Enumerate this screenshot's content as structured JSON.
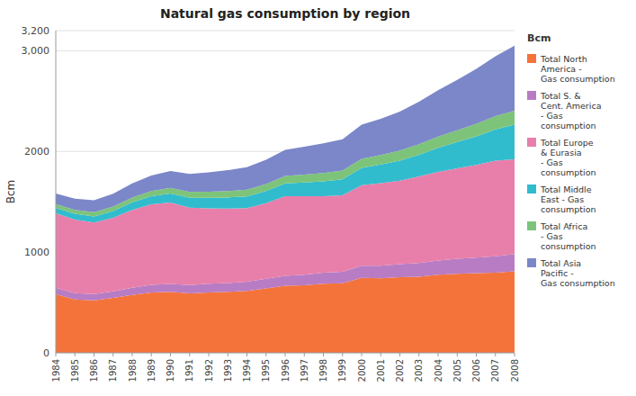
{
  "chart_data": {
    "type": "area",
    "stacked": true,
    "title": "Natural gas consumption by region",
    "ylabel": "Bcm",
    "legend_title": "Bcm",
    "legend": "right",
    "grid": true,
    "x": [
      1984,
      1985,
      1986,
      1987,
      1988,
      1989,
      1990,
      1991,
      1992,
      1993,
      1994,
      1995,
      1996,
      1997,
      1998,
      1999,
      2000,
      2001,
      2002,
      2003,
      2004,
      2005,
      2006,
      2007,
      2008
    ],
    "xlim": [
      1984,
      2008
    ],
    "xticks": [
      1984,
      1985,
      1986,
      1987,
      1988,
      1989,
      1990,
      1991,
      1992,
      1993,
      1994,
      1995,
      1996,
      1997,
      1998,
      1999,
      2000,
      2001,
      2002,
      2003,
      2004,
      2005,
      2006,
      2007,
      2008
    ],
    "ylim": [
      0,
      3200
    ],
    "yticks": [
      0,
      1000,
      2000,
      {
        "value": 3000,
        "label": "3,000"
      },
      {
        "value": 3200,
        "label": "3,200"
      }
    ],
    "series": [
      {
        "name": "Total North\nAmerica -\nGas consumption",
        "color": "#F4733B",
        "values": [
          580,
          530,
          520,
          545,
          575,
          600,
          605,
          590,
          600,
          605,
          615,
          640,
          665,
          670,
          685,
          690,
          745,
          740,
          750,
          755,
          775,
          785,
          790,
          795,
          810
        ]
      },
      {
        "name": "Total S. &\nCent. America\n- Gas\nconsumption",
        "color": "#B87CC4",
        "values": [
          65,
          62,
          63,
          66,
          70,
          74,
          78,
          82,
          85,
          88,
          92,
          95,
          100,
          105,
          110,
          115,
          120,
          125,
          130,
          136,
          142,
          148,
          155,
          163,
          172
        ]
      },
      {
        "name": "Total Europe\n& Eurasia\n- Gas\nconsumption",
        "color": "#E87FAA",
        "values": [
          740,
          730,
          710,
          730,
          775,
          800,
          810,
          770,
          750,
          740,
          730,
          750,
          790,
          780,
          760,
          760,
          800,
          820,
          830,
          860,
          880,
          900,
          920,
          950,
          940
        ]
      },
      {
        "name": "Total Middle\nEast - Gas\nconsumption",
        "color": "#31BCCE",
        "values": [
          55,
          58,
          62,
          67,
          75,
          82,
          90,
          98,
          104,
          110,
          116,
          122,
          128,
          136,
          148,
          158,
          172,
          185,
          198,
          215,
          238,
          260,
          285,
          312,
          345
        ]
      },
      {
        "name": "Total Africa\n- Gas\nconsumption",
        "color": "#7DC47A",
        "values": [
          38,
          40,
          42,
          44,
          47,
          50,
          54,
          57,
          60,
          63,
          66,
          70,
          74,
          78,
          82,
          86,
          90,
          95,
          100,
          106,
          112,
          118,
          124,
          131,
          138
        ]
      },
      {
        "name": "Total Asia\nPacific -\nGas consumption",
        "color": "#7B87C8",
        "values": [
          105,
          110,
          118,
          127,
          140,
          154,
          168,
          180,
          194,
          208,
          224,
          240,
          258,
          278,
          295,
          312,
          338,
          360,
          388,
          422,
          460,
          500,
          545,
          595,
          645
        ]
      }
    ]
  }
}
